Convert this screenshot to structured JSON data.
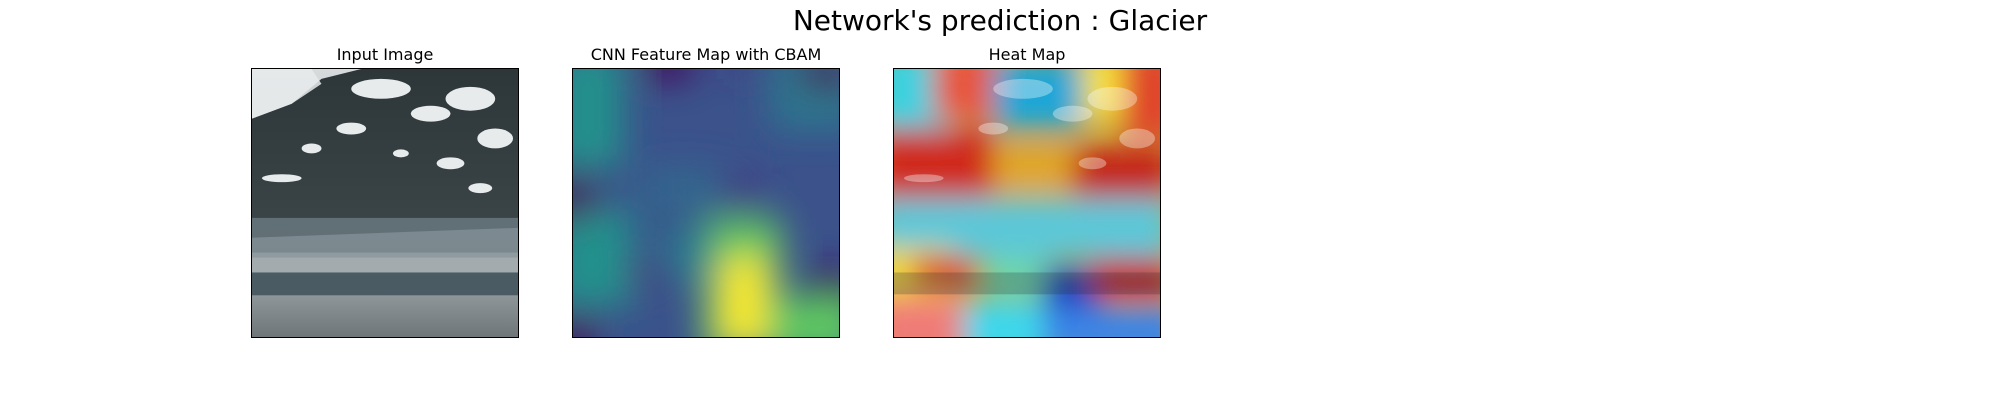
{
  "figure": {
    "title": "Network's prediction : Glacier",
    "panels": [
      {
        "title": "Input Image",
        "content": "glacier-photo"
      },
      {
        "title": "CNN Feature Map with CBAM",
        "content": "viridis-feature-map"
      },
      {
        "title": "Heat Map",
        "content": "jet-heatmap-overlay"
      }
    ]
  }
}
